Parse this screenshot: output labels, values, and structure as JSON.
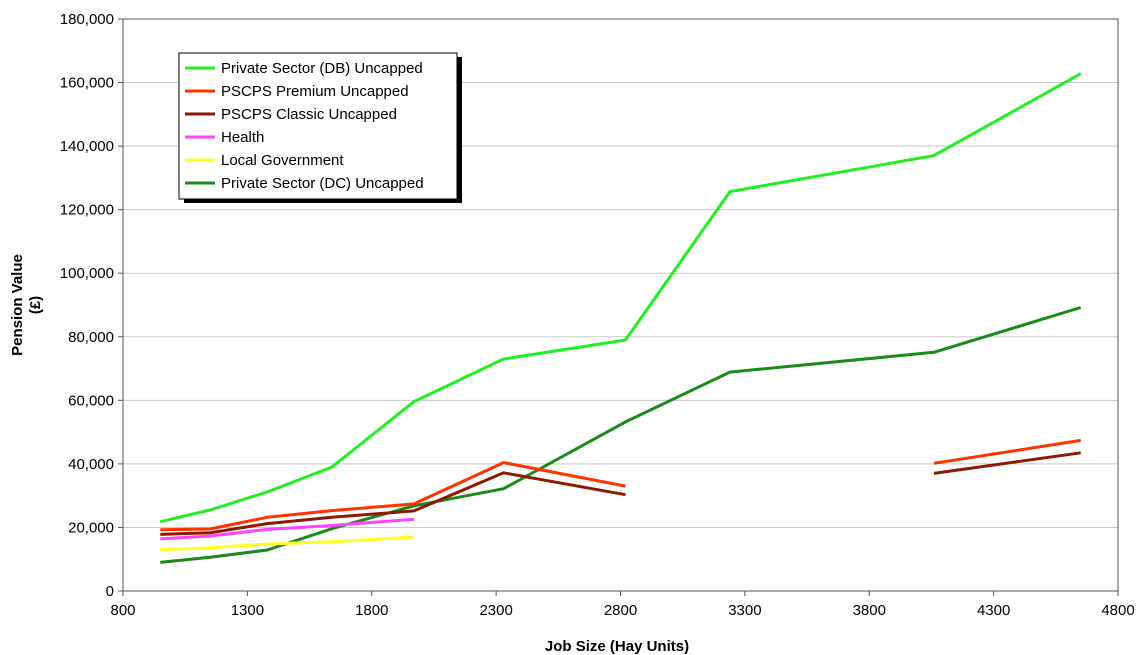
{
  "chart_data": {
    "type": "line",
    "title": "",
    "xlabel": "Job Size (Hay Units)",
    "ylabel_lines": [
      "Pension Value",
      "(£)"
    ],
    "xlim": [
      800,
      4800
    ],
    "ylim": [
      0,
      180000
    ],
    "x_ticks": [
      800,
      1300,
      1800,
      2300,
      2800,
      3300,
      3800,
      4300,
      4800
    ],
    "x_tick_labels": [
      "800",
      "1300",
      "1800",
      "2300",
      "2800",
      "3300",
      "3800",
      "4300",
      "4800"
    ],
    "y_ticks": [
      0,
      20000,
      40000,
      60000,
      80000,
      100000,
      120000,
      140000,
      160000,
      180000
    ],
    "y_tick_labels": [
      "0",
      "20,000",
      "40,000",
      "60,000",
      "80,000",
      "100,000",
      "120,000",
      "140,000",
      "160,000",
      "180,000"
    ],
    "grid": "horizontal",
    "legend_position": "top-left",
    "series": [
      {
        "name": "Private Sector (DB) Uncapped",
        "color": "#22ee22",
        "segments": [
          [
            [
              950,
              21800
            ],
            [
              1150,
              25500
            ],
            [
              1380,
              31200
            ],
            [
              1640,
              39000
            ],
            [
              1970,
              59600
            ],
            [
              2330,
              73000
            ],
            [
              2820,
              79000
            ],
            [
              3240,
              125700
            ],
            [
              4060,
              137000
            ],
            [
              4650,
              162800
            ]
          ]
        ]
      },
      {
        "name": "PSCPS Premium Uncapped",
        "color": "#ff3300",
        "segments": [
          [
            [
              950,
              19300
            ],
            [
              1150,
              19500
            ],
            [
              1380,
              23200
            ],
            [
              1640,
              25300
            ],
            [
              1970,
              27400
            ],
            [
              2330,
              40400
            ],
            [
              2820,
              33000
            ]
          ],
          [
            [
              4060,
              40200
            ],
            [
              4650,
              47400
            ]
          ]
        ]
      },
      {
        "name": "PSCPS Classic Uncapped",
        "color": "#8b1a00",
        "segments": [
          [
            [
              950,
              17800
            ],
            [
              1150,
              18300
            ],
            [
              1380,
              21200
            ],
            [
              1640,
              23200
            ],
            [
              1970,
              25200
            ],
            [
              2330,
              37200
            ],
            [
              2820,
              30300
            ]
          ],
          [
            [
              4060,
              37000
            ],
            [
              4650,
              43500
            ]
          ]
        ]
      },
      {
        "name": "Health",
        "color": "#ff44ff",
        "segments": [
          [
            [
              950,
              16400
            ],
            [
              1150,
              17300
            ],
            [
              1380,
              19400
            ],
            [
              1640,
              20600
            ],
            [
              1970,
              22600
            ]
          ]
        ]
      },
      {
        "name": "Local Government",
        "color": "#ffff22",
        "segments": [
          [
            [
              950,
              13000
            ],
            [
              1150,
              13600
            ],
            [
              1380,
              14800
            ],
            [
              1640,
              15500
            ],
            [
              1970,
              17000
            ]
          ]
        ]
      },
      {
        "name": "Private Sector (DC) Uncapped",
        "color": "#1a8a1a",
        "segments": [
          [
            [
              950,
              9000
            ],
            [
              1150,
              10600
            ],
            [
              1380,
              12900
            ],
            [
              1640,
              19600
            ],
            [
              1970,
              26800
            ],
            [
              2330,
              32200
            ],
            [
              2820,
              53200
            ],
            [
              3240,
              68900
            ],
            [
              4060,
              75100
            ],
            [
              4650,
              89200
            ]
          ]
        ]
      }
    ]
  }
}
